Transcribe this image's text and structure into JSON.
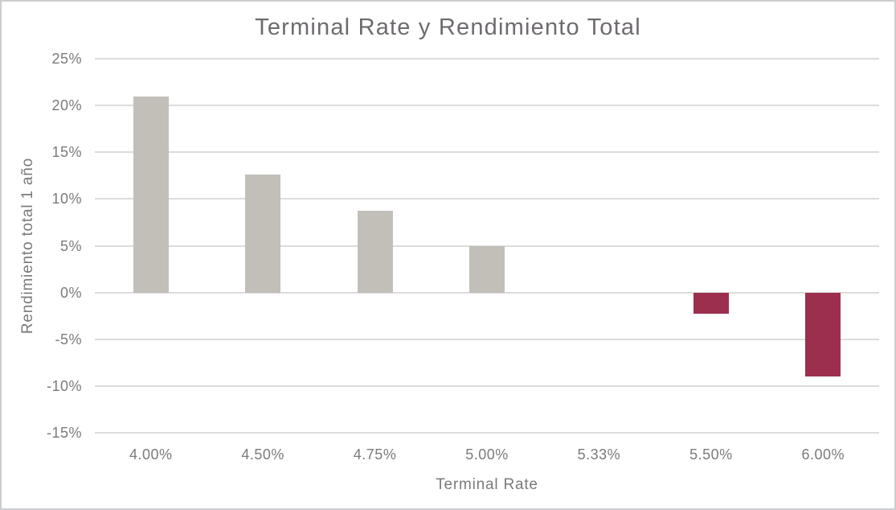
{
  "chart_data": {
    "type": "bar",
    "title": "Terminal Rate y Rendimiento Total",
    "xlabel": "Terminal Rate",
    "ylabel": "Rendimiento total 1 año",
    "categories": [
      "4.00%",
      "4.50%",
      "4.75%",
      "5.00%",
      "5.33%",
      "5.50%",
      "6.00%"
    ],
    "values": [
      21,
      12.6,
      8.7,
      5,
      0,
      -2.3,
      -9
    ],
    "value_unit": "%",
    "ylim": [
      -15,
      25
    ],
    "ytick_step": 5,
    "ytick_labels": [
      "25%",
      "20%",
      "15%",
      "10%",
      "5%",
      "0%",
      "-5%",
      "-10%",
      "-15%"
    ],
    "grid": true,
    "legend": false,
    "colors": {
      "bar_positive": "#c2bfb9",
      "bar_negative": "#9c2f4e",
      "gridline": "#dcdcdc",
      "title_text": "#6e6a6f",
      "axis_text": "#7c797c",
      "frame_border": "#cbcdcf",
      "background": "#ffffff"
    }
  }
}
